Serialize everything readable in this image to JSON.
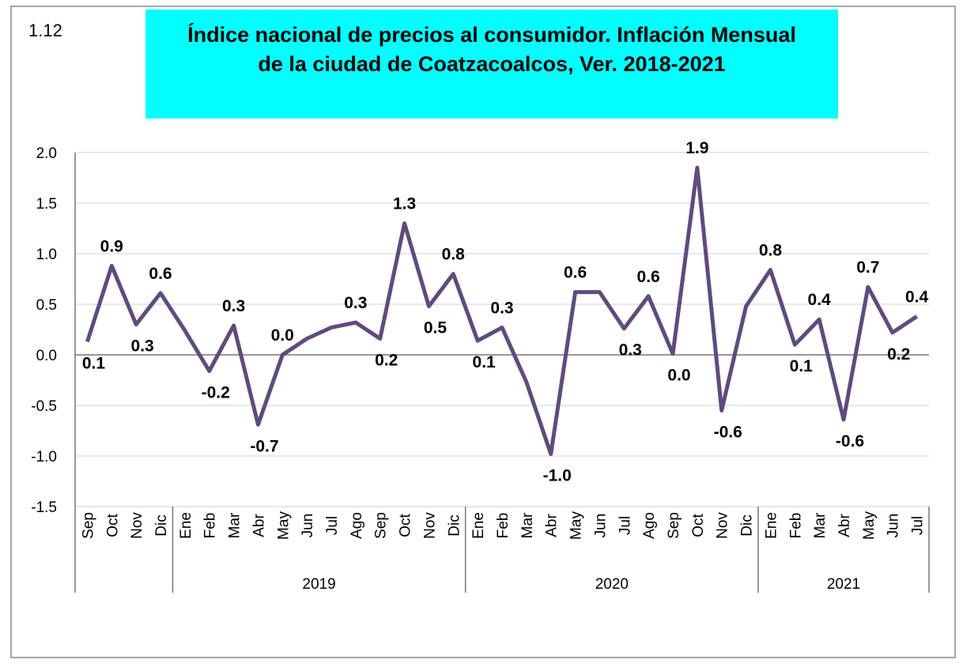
{
  "corner_label": "1.12",
  "chart_data": {
    "type": "line",
    "title": [
      "Índice nacional de precios al consumidor. Inflación Mensual",
      "de la ciudad de Coatzacoalcos, Ver. 2018-2021"
    ],
    "category_groups": [
      {
        "categories": [
          "Sep",
          "Oct",
          "Nov",
          "Dic"
        ]
      },
      {
        "label": "2019",
        "categories": [
          "Ene",
          "Feb",
          "Mar",
          "Abr",
          "May",
          "Jun",
          "Jul",
          "Ago",
          "Sep",
          "Oct",
          "Nov",
          "Dic"
        ]
      },
      {
        "label": "2020",
        "categories": [
          "Ene",
          "Feb",
          "Mar",
          "Abr",
          "May",
          "Jun",
          "Jul",
          "Ago",
          "Sep",
          "Oct",
          "Nov",
          "Dic"
        ]
      },
      {
        "label": "2021",
        "categories": [
          "Ene",
          "Feb",
          "Mar",
          "Abr",
          "May",
          "Jun",
          "Jul"
        ]
      }
    ],
    "values": [
      0.13,
      0.88,
      0.3,
      0.61,
      0.24,
      -0.16,
      0.29,
      -0.69,
      0.0,
      0.16,
      0.27,
      0.32,
      0.16,
      1.3,
      0.48,
      0.8,
      0.14,
      0.27,
      -0.27,
      -0.98,
      0.62,
      0.62,
      0.26,
      0.58,
      0.01,
      1.85,
      -0.55,
      0.48,
      0.84,
      0.1,
      0.35,
      -0.64,
      0.67,
      0.22,
      0.38
    ],
    "value_labels": [
      "0.1",
      "0.9",
      "0.3",
      "0.6",
      null,
      "-0.2",
      "0.3",
      "-0.7",
      "0.0",
      null,
      null,
      "0.3",
      "0.2",
      "1.3",
      "0.5",
      "0.8",
      "0.1",
      "0.3",
      null,
      "-1.0",
      "0.6",
      null,
      "0.3",
      "0.6",
      "0.0",
      "1.9",
      "-0.6",
      null,
      "0.8",
      "0.1",
      "0.4",
      "-0.6",
      "0.7",
      "0.2",
      "0.4"
    ],
    "color": "#5f4b7f",
    "ylim": [
      -1.5,
      2.0
    ],
    "yticks": [
      {
        "value": -1.5,
        "label": "-1.5"
      },
      {
        "value": -1,
        "label": "-1.0"
      },
      {
        "value": -0.5,
        "label": "-0.5"
      },
      {
        "value": 0,
        "label": "0.0"
      },
      {
        "value": 0.5,
        "label": "0.5"
      },
      {
        "value": 1,
        "label": "1.0"
      },
      {
        "value": 1.5,
        "label": "1.5"
      },
      {
        "value": 2,
        "label": "2.0"
      }
    ],
    "grid": true
  }
}
